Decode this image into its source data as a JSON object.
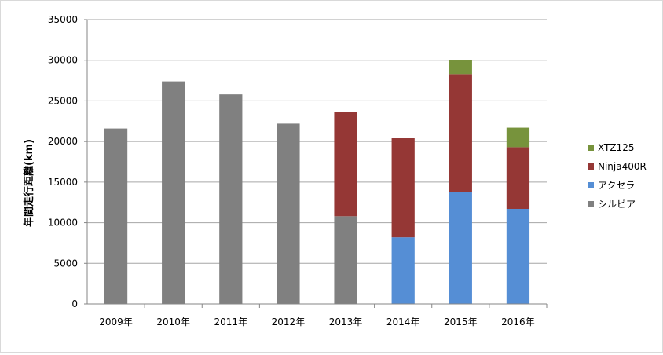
{
  "chart_data": {
    "type": "bar",
    "stacked": true,
    "title": "",
    "xlabel": "",
    "ylabel": "年間走行距離(km)",
    "ylim": [
      0,
      35000
    ],
    "yticks": [
      0,
      5000,
      10000,
      15000,
      20000,
      25000,
      30000,
      35000
    ],
    "grid": true,
    "legend_position": "right",
    "categories": [
      "2009年",
      "2010年",
      "2011年",
      "2012年",
      "2013年",
      "2014年",
      "2015年",
      "2016年"
    ],
    "series": [
      {
        "name": "シルビア",
        "color": "#808080",
        "values": [
          21600,
          27400,
          25800,
          22200,
          10800,
          0,
          0,
          0
        ]
      },
      {
        "name": "アクセラ",
        "color": "#558ed5",
        "values": [
          0,
          0,
          0,
          0,
          0,
          8200,
          13800,
          11700
        ]
      },
      {
        "name": "Ninja400R",
        "color": "#953735",
        "values": [
          0,
          0,
          0,
          0,
          12800,
          12200,
          14500,
          7600
        ]
      },
      {
        "name": "XTZ125",
        "color": "#77933c",
        "values": [
          0,
          0,
          0,
          0,
          0,
          0,
          1700,
          2400
        ]
      }
    ]
  }
}
